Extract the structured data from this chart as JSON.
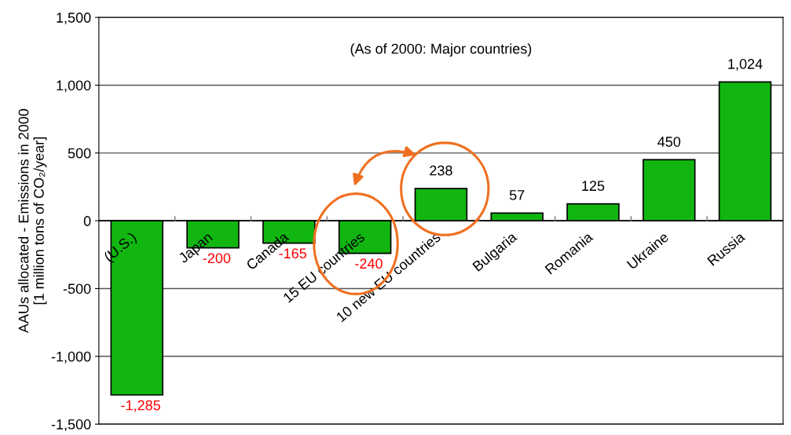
{
  "chart_data": {
    "type": "bar",
    "ylabel": "AAUs allocated - Emissions in 2000\n[1 million tons of CO₂/year]",
    "annotations": [
      "(As of 2000: Major countries)"
    ],
    "categories": [
      "(U.S.)",
      "Japan",
      "Canada",
      "15 EU countries",
      "10 new EU countries",
      "Bulgaria",
      "Romania",
      "Ukraine",
      "Russia"
    ],
    "values": [
      -1285,
      -200,
      -165,
      -240,
      238,
      57,
      125,
      450,
      1024
    ],
    "value_labels": [
      "-1,285",
      "-200",
      "-165",
      "-240",
      "238",
      "57",
      "125",
      "450",
      "1,024"
    ],
    "color": "#11b611",
    "ylim": [
      -1500,
      1500
    ],
    "yticks": [
      {
        "value": -1500,
        "label": "-1,500"
      },
      {
        "value": -1000,
        "label": "-1,000"
      },
      -500,
      0,
      500,
      {
        "value": 1000,
        "label": "1,000"
      },
      {
        "value": 1500,
        "label": "1,500"
      }
    ],
    "grid": "y",
    "legend": false
  }
}
